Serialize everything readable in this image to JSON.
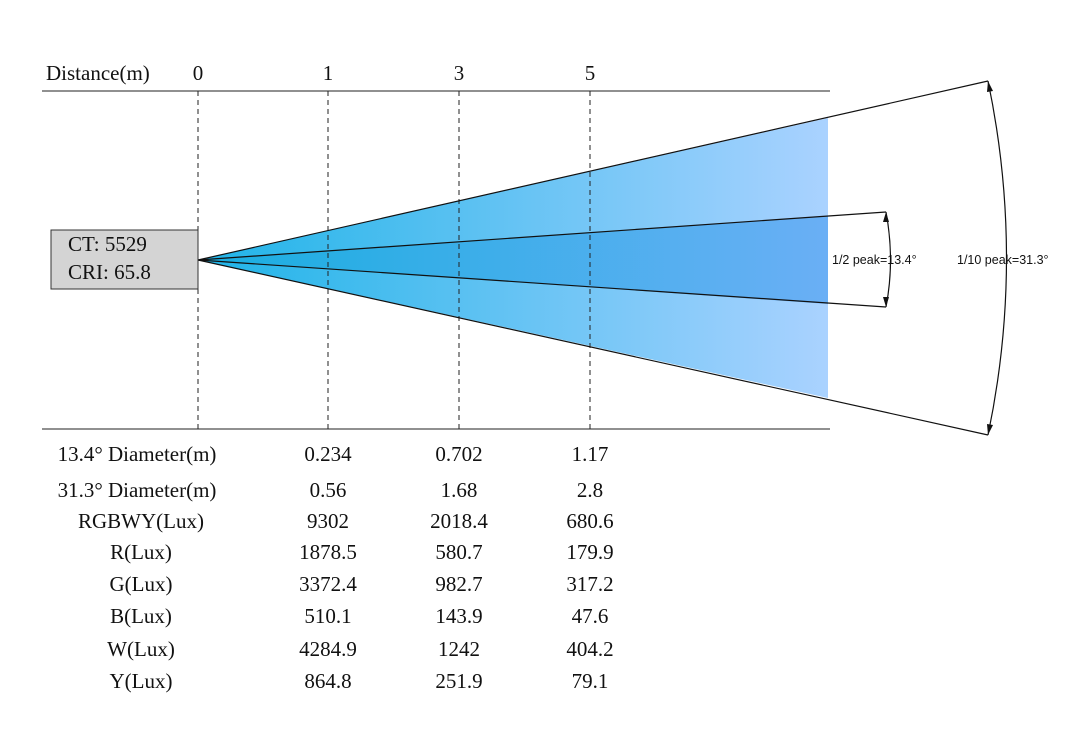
{
  "header": {
    "distance_label": "Distance(m)",
    "distance_marks": [
      "0",
      "1",
      "3",
      "5"
    ]
  },
  "source_box": {
    "ct": "CT: 5529",
    "cri": "CRI: 65.8"
  },
  "beam_annotations": {
    "half_peak": "1/2 peak=13.4°",
    "tenth_peak": "1/10 peak=31.3°"
  },
  "colors": {
    "beam_outer_start": "#1fb4e8",
    "beam_outer_end": "#aad2ff",
    "beam_inner_start": "#18aee0",
    "beam_inner_end": "#6aaff5",
    "source_box_fill": "#d4d4d4"
  },
  "table": {
    "rows": [
      {
        "label": "13.4° Diameter(m)",
        "values": [
          "0.234",
          "0.702",
          "1.17"
        ]
      },
      {
        "label": "31.3° Diameter(m)",
        "values": [
          "0.56",
          "1.68",
          "2.8"
        ]
      },
      {
        "label": "RGBWY(Lux)",
        "values": [
          "9302",
          "2018.4",
          "680.6"
        ]
      },
      {
        "label": "R(Lux)",
        "values": [
          "1878.5",
          "580.7",
          "179.9"
        ]
      },
      {
        "label": "G(Lux)",
        "values": [
          "3372.4",
          "982.7",
          "317.2"
        ]
      },
      {
        "label": "B(Lux)",
        "values": [
          "510.1",
          "143.9",
          "47.6"
        ]
      },
      {
        "label": "W(Lux)",
        "values": [
          "4284.9",
          "1242",
          "404.2"
        ]
      },
      {
        "label": "Y(Lux)",
        "values": [
          "864.8",
          "251.9",
          "79.1"
        ]
      }
    ]
  }
}
